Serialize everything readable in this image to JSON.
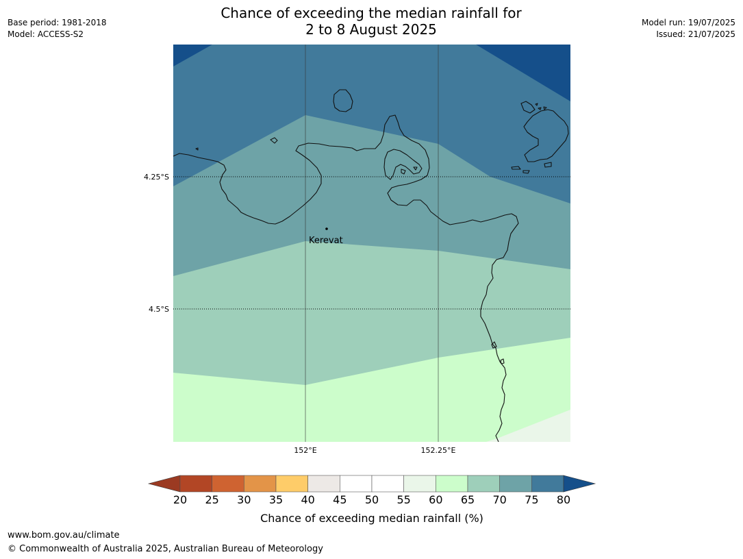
{
  "header": {
    "title_line1": "Chance of exceeding the median rainfall for",
    "title_line2": "2 to 8 August 2025",
    "base_period": "Base period: 1981-2018",
    "model": "Model: ACCESS-S2",
    "model_run": "Model run: 19/07/2025",
    "issued": "Issued: 21/07/2025"
  },
  "map": {
    "place_label": "Kerevat",
    "lat_labels": [
      "4.25°S",
      "4.5°S"
    ],
    "lon_labels": [
      "152°E",
      "152.25°E"
    ],
    "zone_colors": {
      "b_75_80": "#417a9b",
      "b_70_75": "#6ea3a7",
      "b_65_70": "#9ecfba",
      "b_60_65": "#ccfdcb",
      "b_55_60": "#eaf6e9",
      "b_over_80": "#154f8a"
    }
  },
  "colorbar": {
    "title": "Chance of exceeding median rainfall (%)",
    "ticks": [
      "20",
      "25",
      "30",
      "35",
      "40",
      "45",
      "50",
      "55",
      "60",
      "65",
      "70",
      "75",
      "80"
    ],
    "colors": [
      "#b24625",
      "#cf6331",
      "#e39448",
      "#fecc69",
      "#ede9e6",
      "#ffffff",
      "#ffffff",
      "#eaf6e9",
      "#ccfdcb",
      "#9ecfba",
      "#6ea3a7",
      "#417a9b"
    ],
    "under_color": "#9b3a22",
    "over_color": "#154f8a"
  },
  "footer": {
    "url": "www.bom.gov.au/climate",
    "copyright": "© Commonwealth of Australia 2025, Australian Bureau of Meteorology"
  }
}
